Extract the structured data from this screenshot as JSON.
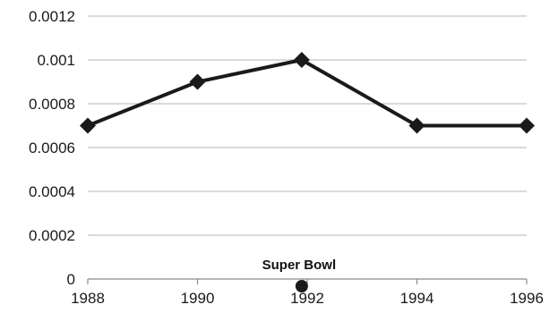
{
  "chart_data": {
    "type": "line",
    "title": "",
    "xlabel": "",
    "ylabel": "",
    "x": [
      1988,
      1990,
      1992,
      1994,
      1996
    ],
    "xlim": [
      1988,
      1996
    ],
    "x_ticks": [
      "1988",
      "1990",
      "1992",
      "1994",
      "1996"
    ],
    "ylim": [
      0,
      0.0012
    ],
    "y_ticks": [
      "0",
      "0.0002",
      "0.0004",
      "0.0006",
      "0.0008",
      "0.001",
      "0.0012"
    ],
    "grid": "horizontal",
    "legend": "none",
    "series": [
      {
        "color": "#1a1a1a",
        "marker": "diamond",
        "points": [
          {
            "x": 1988,
            "y": 0.0007
          },
          {
            "x": 1990,
            "y": 0.0009
          },
          {
            "x": 1991.9,
            "y": 0.001
          },
          {
            "x": 1994,
            "y": 0.0007
          },
          {
            "x": 1996,
            "y": 0.0007
          }
        ]
      }
    ],
    "annotations": [
      {
        "text": "Super Bowl",
        "x": 1991.9,
        "y": 0,
        "marker": "circle"
      }
    ],
    "colors": {
      "line": "#1a1a1a",
      "grid": "#b5b5b5",
      "axis": "#8a8a8a",
      "marker_fill": "#1a1a1a"
    }
  }
}
